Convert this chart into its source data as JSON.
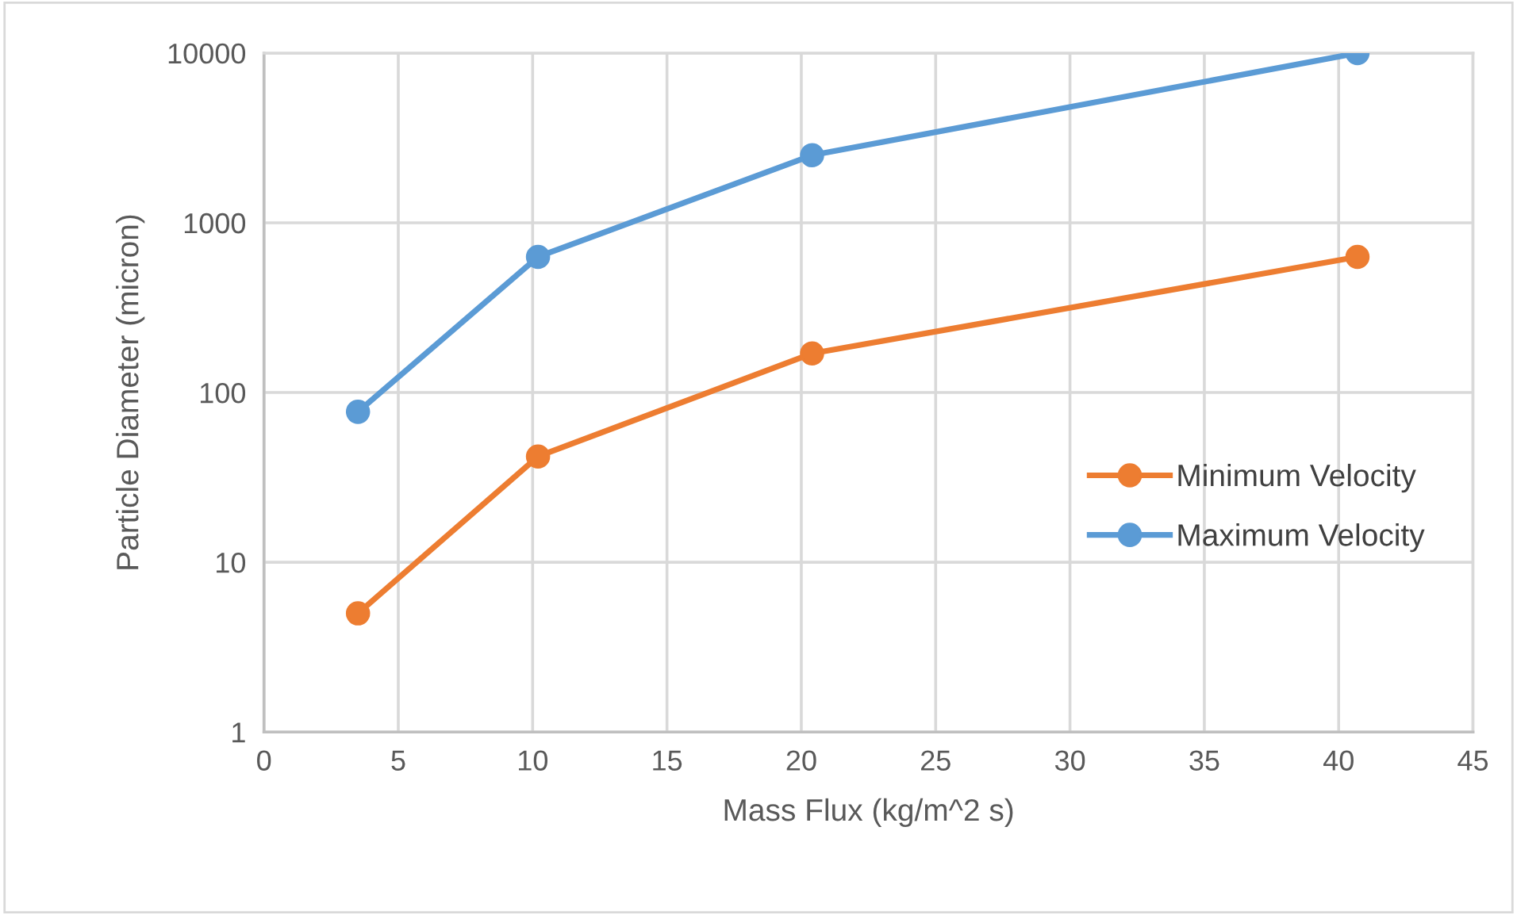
{
  "chart_data": {
    "type": "line",
    "xlabel": "Mass Flux (kg/m^2 s)",
    "ylabel": "Particle Diameter (micron)",
    "x": [
      3.5,
      10.2,
      20.4,
      40.7
    ],
    "series": [
      {
        "name": "Minimum Velocity",
        "color": "#ed7d31",
        "values": [
          5,
          42,
          170,
          630
        ]
      },
      {
        "name": "Maximum Velocity",
        "color": "#5b9bd5",
        "values": [
          77,
          630,
          2500,
          10000
        ]
      }
    ],
    "log": "y",
    "xlim": [
      0,
      45
    ],
    "xticks": [
      0,
      5,
      10,
      15,
      20,
      25,
      30,
      35,
      40,
      45
    ],
    "ylim": [
      1,
      10000
    ],
    "yticks": [
      1,
      10,
      100,
      1000,
      10000
    ],
    "grid": true,
    "legend": "right",
    "marker": "circle",
    "line_style": "solid"
  }
}
